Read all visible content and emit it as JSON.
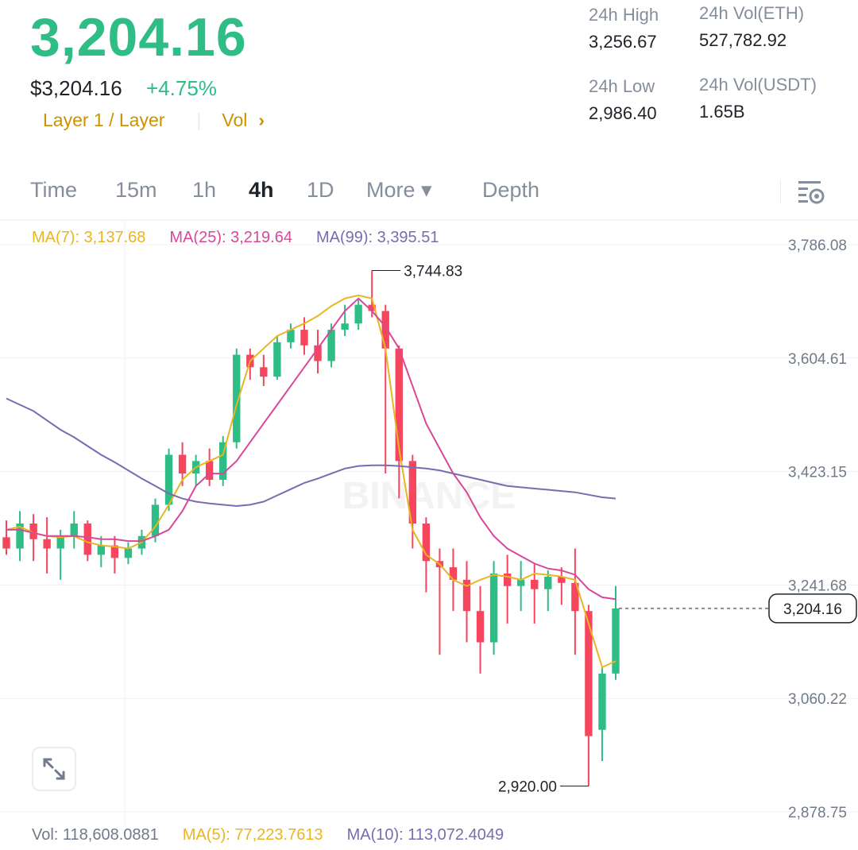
{
  "header": {
    "last_price": "3,204.16",
    "usd_price": "$3,204.16",
    "change_pct": "+4.75%",
    "tag_primary": "Layer 1 / Layer",
    "tag_secondary": "Vol",
    "tag_chevron": "›",
    "accent_green": "#2ebd85",
    "accent_red": "#f6465d",
    "accent_gold": "#c99400"
  },
  "stats": {
    "high_label": "24h High",
    "high_value": "3,256.67",
    "low_label": "24h Low",
    "low_value": "2,986.40",
    "vol_base_label": "24h Vol(ETH)",
    "vol_base_value": "527,782.92",
    "vol_quote_label": "24h Vol(USDT)",
    "vol_quote_value": "1.65B"
  },
  "tabs": [
    {
      "label": "Time"
    },
    {
      "label": "15m"
    },
    {
      "label": "1h"
    },
    {
      "label": "4h",
      "active": true
    },
    {
      "label": "1D"
    },
    {
      "label": "More ▾"
    },
    {
      "label": "Depth"
    }
  ],
  "ma_legend": {
    "ma7": "MA(7): 3,137.68",
    "ma25": "MA(25): 3,219.64",
    "ma99": "MA(99): 3,395.51",
    "color_ma7": "#e8b523",
    "color_ma25": "#d9479a",
    "color_ma99": "#7b6bb0"
  },
  "vol_legend": {
    "vol": "Vol: 118,608.0881",
    "ma5": "MA(5): 77,223.7613",
    "ma10": "MA(10): 113,072.4049"
  },
  "watermark": "BINANCE",
  "chart_data": {
    "type": "candlestick",
    "interval": "4h",
    "y_axis_ticks": [
      "3,786.08",
      "3,604.61",
      "3,423.15",
      "3,241.68",
      "3,060.22",
      "2,878.75"
    ],
    "ylim": [
      2878.75,
      3786.08
    ],
    "current_price_label": "3,204.16",
    "current_price": 3204.16,
    "high_annotation": "3,744.83",
    "high_value": 3744.83,
    "low_annotation": "2,920.00",
    "low_value": 2920.0,
    "series": [
      {
        "name": "MA(7)",
        "values": [
          3330,
          3335,
          3325,
          3320,
          3318,
          3320,
          3310,
          3305,
          3303,
          3300,
          3310,
          3335,
          3370,
          3410,
          3430,
          3440,
          3450,
          3530,
          3600,
          3620,
          3640,
          3650,
          3660,
          3672,
          3688,
          3700,
          3705,
          3700,
          3620,
          3460,
          3330,
          3290,
          3275,
          3250,
          3240,
          3250,
          3258,
          3255,
          3250,
          3260,
          3258,
          3255,
          3250,
          3180,
          3110,
          3120
        ]
      },
      {
        "name": "MA(25)",
        "values": [
          3330,
          3330,
          3325,
          3320,
          3320,
          3320,
          3318,
          3315,
          3315,
          3312,
          3312,
          3320,
          3330,
          3360,
          3400,
          3420,
          3420,
          3440,
          3470,
          3500,
          3530,
          3560,
          3590,
          3620,
          3650,
          3680,
          3700,
          3680,
          3655,
          3620,
          3560,
          3500,
          3460,
          3420,
          3390,
          3350,
          3320,
          3300,
          3288,
          3276,
          3268,
          3265,
          3258,
          3235,
          3222,
          3219
        ]
      },
      {
        "name": "MA(99)",
        "values": [
          3540,
          3530,
          3520,
          3505,
          3490,
          3478,
          3464,
          3450,
          3438,
          3425,
          3412,
          3400,
          3388,
          3380,
          3375,
          3372,
          3370,
          3368,
          3370,
          3375,
          3385,
          3395,
          3405,
          3412,
          3420,
          3428,
          3432,
          3433,
          3433,
          3432,
          3430,
          3428,
          3425,
          3420,
          3415,
          3410,
          3405,
          3400,
          3398,
          3396,
          3394,
          3392,
          3390,
          3386,
          3382,
          3380
        ]
      }
    ],
    "candles": [
      {
        "o": 3318,
        "h": 3345,
        "c": 3300,
        "l": 3290
      },
      {
        "o": 3300,
        "h": 3360,
        "c": 3340,
        "l": 3280
      },
      {
        "o": 3340,
        "h": 3355,
        "c": 3315,
        "l": 3280
      },
      {
        "o": 3315,
        "h": 3350,
        "c": 3300,
        "l": 3260
      },
      {
        "o": 3300,
        "h": 3330,
        "c": 3320,
        "l": 3250
      },
      {
        "o": 3320,
        "h": 3360,
        "c": 3340,
        "l": 3300
      },
      {
        "o": 3340,
        "h": 3345,
        "c": 3290,
        "l": 3280
      },
      {
        "o": 3290,
        "h": 3320,
        "c": 3305,
        "l": 3270
      },
      {
        "o": 3305,
        "h": 3320,
        "c": 3285,
        "l": 3260
      },
      {
        "o": 3285,
        "h": 3310,
        "c": 3300,
        "l": 3275
      },
      {
        "o": 3300,
        "h": 3330,
        "c": 3320,
        "l": 3290
      },
      {
        "o": 3320,
        "h": 3380,
        "c": 3370,
        "l": 3310
      },
      {
        "o": 3370,
        "h": 3460,
        "c": 3450,
        "l": 3360
      },
      {
        "o": 3450,
        "h": 3470,
        "c": 3420,
        "l": 3400
      },
      {
        "o": 3420,
        "h": 3450,
        "c": 3440,
        "l": 3400
      },
      {
        "o": 3440,
        "h": 3460,
        "c": 3410,
        "l": 3400
      },
      {
        "o": 3410,
        "h": 3480,
        "c": 3470,
        "l": 3400
      },
      {
        "o": 3470,
        "h": 3620,
        "c": 3610,
        "l": 3460
      },
      {
        "o": 3610,
        "h": 3620,
        "c": 3590,
        "l": 3570
      },
      {
        "o": 3590,
        "h": 3610,
        "c": 3575,
        "l": 3560
      },
      {
        "o": 3575,
        "h": 3640,
        "c": 3630,
        "l": 3570
      },
      {
        "o": 3630,
        "h": 3660,
        "c": 3650,
        "l": 3620
      },
      {
        "o": 3650,
        "h": 3670,
        "c": 3625,
        "l": 3610
      },
      {
        "o": 3625,
        "h": 3650,
        "c": 3600,
        "l": 3580
      },
      {
        "o": 3600,
        "h": 3660,
        "c": 3650,
        "l": 3590
      },
      {
        "o": 3650,
        "h": 3690,
        "c": 3660,
        "l": 3640
      },
      {
        "o": 3660,
        "h": 3700,
        "c": 3690,
        "l": 3650
      },
      {
        "o": 3690,
        "h": 3745,
        "c": 3680,
        "l": 3670
      },
      {
        "o": 3680,
        "h": 3690,
        "c": 3620,
        "l": 3420
      },
      {
        "o": 3620,
        "h": 3625,
        "c": 3440,
        "l": 3380
      },
      {
        "o": 3440,
        "h": 3450,
        "c": 3340,
        "l": 3300
      },
      {
        "o": 3340,
        "h": 3350,
        "c": 3280,
        "l": 3230
      },
      {
        "o": 3280,
        "h": 3300,
        "c": 3270,
        "l": 3130
      },
      {
        "o": 3270,
        "h": 3300,
        "c": 3250,
        "l": 3200
      },
      {
        "o": 3250,
        "h": 3280,
        "c": 3200,
        "l": 3150
      },
      {
        "o": 3200,
        "h": 3240,
        "c": 3150,
        "l": 3100
      },
      {
        "o": 3150,
        "h": 3280,
        "c": 3260,
        "l": 3130
      },
      {
        "o": 3260,
        "h": 3290,
        "c": 3240,
        "l": 3180
      },
      {
        "o": 3240,
        "h": 3280,
        "c": 3250,
        "l": 3200
      },
      {
        "o": 3250,
        "h": 3275,
        "c": 3235,
        "l": 3180
      },
      {
        "o": 3235,
        "h": 3265,
        "c": 3255,
        "l": 3200
      },
      {
        "o": 3255,
        "h": 3270,
        "c": 3245,
        "l": 3210
      },
      {
        "o": 3245,
        "h": 3300,
        "c": 3200,
        "l": 3130
      },
      {
        "o": 3200,
        "h": 3210,
        "c": 3000,
        "l": 2920
      },
      {
        "o": 3010,
        "h": 3110,
        "c": 3100,
        "l": 2960
      },
      {
        "o": 3100,
        "h": 3240,
        "c": 3204.16,
        "l": 3090
      }
    ]
  }
}
